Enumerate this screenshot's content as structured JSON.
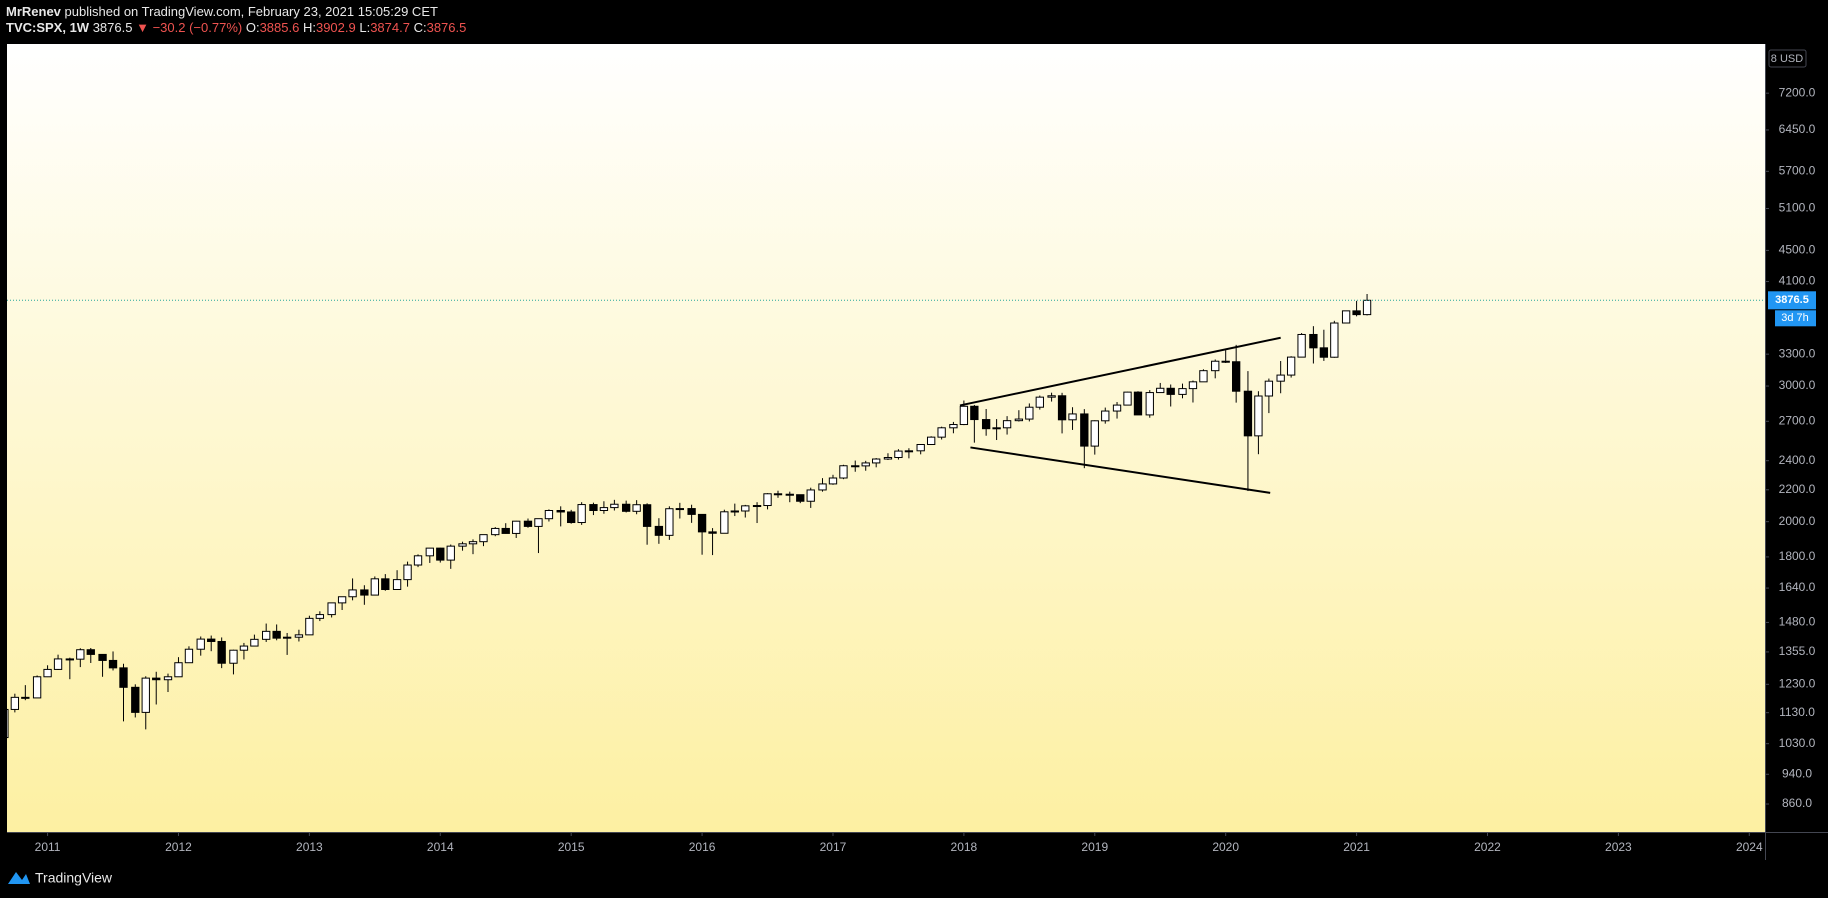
{
  "header": {
    "author": "MrRenev",
    "published": "published on TradingView.com, February 23, 2021 15:05:29 CET",
    "symbol": "TVC:SPX, 1W",
    "arrow": "▼",
    "change": "−30.2 (−0.77%)",
    "ohlc_labels": [
      "O:",
      "H:",
      "L:",
      "C:"
    ]
  },
  "footer": {
    "brand": "TradingView"
  },
  "chart_data": {
    "type": "candlestick",
    "log_scale": true,
    "grid": false,
    "up_color": "#ffffff",
    "down_color": "#000000",
    "wick_color": "#000000",
    "price_line_color": "#26a69a",
    "tag_color": "#2196f3",
    "currency": "8 USD",
    "countdown": "3d 7h",
    "ohlc": {
      "open": 3885.6,
      "high": 3902.9,
      "low": 3874.7,
      "close": 3876.5
    },
    "xlim": [
      2010.69,
      2024.12
    ],
    "xticks": [
      2011,
      2012,
      2013,
      2014,
      2015,
      2016,
      2017,
      2018,
      2019,
      2020,
      2021,
      2022,
      2023,
      2024
    ],
    "ylim": [
      791,
      8340
    ],
    "yticks": [
      {
        "value": 860,
        "label": "860.0"
      },
      {
        "value": 940,
        "label": "940.0"
      },
      {
        "value": 1030,
        "label": "1030.0"
      },
      {
        "value": 1130,
        "label": "1130.0"
      },
      {
        "value": 1230,
        "label": "1230.0"
      },
      {
        "value": 1355,
        "label": "1355.0"
      },
      {
        "value": 1480,
        "label": "1480.0"
      },
      {
        "value": 1640,
        "label": "1640.0"
      },
      {
        "value": 1800,
        "label": "1800.0"
      },
      {
        "value": 2000,
        "label": "2000.0"
      },
      {
        "value": 2200,
        "label": "2200.0"
      },
      {
        "value": 2400,
        "label": "2400.0"
      },
      {
        "value": 2700,
        "label": "2700.0"
      },
      {
        "value": 3000,
        "label": "3000.0"
      },
      {
        "value": 3300,
        "label": "3300.0"
      },
      {
        "value": 4100,
        "label": "4100.0"
      },
      {
        "value": 4500,
        "label": "4500.0"
      },
      {
        "value": 5100,
        "label": "5100.0"
      },
      {
        "value": 5700,
        "label": "5700.0"
      },
      {
        "value": 6450,
        "label": "6450.0"
      },
      {
        "value": 7200,
        "label": "7200.0"
      }
    ],
    "x": [
      2010.67,
      2010.75,
      2010.83,
      2010.92,
      2011,
      2011.08,
      2011.17,
      2011.25,
      2011.33,
      2011.42,
      2011.5,
      2011.58,
      2011.67,
      2011.75,
      2011.83,
      2011.92,
      2012,
      2012.08,
      2012.17,
      2012.25,
      2012.33,
      2012.42,
      2012.5,
      2012.58,
      2012.67,
      2012.75,
      2012.83,
      2012.92,
      2013,
      2013.08,
      2013.17,
      2013.25,
      2013.33,
      2013.42,
      2013.5,
      2013.58,
      2013.67,
      2013.75,
      2013.83,
      2013.92,
      2014,
      2014.08,
      2014.17,
      2014.25,
      2014.33,
      2014.42,
      2014.5,
      2014.58,
      2014.67,
      2014.75,
      2014.83,
      2014.92,
      2015,
      2015.08,
      2015.17,
      2015.25,
      2015.33,
      2015.42,
      2015.5,
      2015.58,
      2015.67,
      2015.75,
      2015.83,
      2015.92,
      2016,
      2016.08,
      2016.17,
      2016.25,
      2016.33,
      2016.42,
      2016.5,
      2016.58,
      2016.67,
      2016.75,
      2016.83,
      2016.92,
      2017,
      2017.08,
      2017.17,
      2017.25,
      2017.33,
      2017.42,
      2017.5,
      2017.58,
      2017.67,
      2017.75,
      2017.83,
      2017.92,
      2018,
      2018.08,
      2018.17,
      2018.25,
      2018.33,
      2018.42,
      2018.5,
      2018.58,
      2018.67,
      2018.75,
      2018.83,
      2018.92,
      2019,
      2019.08,
      2019.17,
      2019.25,
      2019.33,
      2019.42,
      2019.5,
      2019.58,
      2019.67,
      2019.75,
      2019.83,
      2019.92,
      2020,
      2020.08,
      2020.17,
      2020.25,
      2020.33,
      2020.42,
      2020.5,
      2020.58,
      2020.67,
      2020.75,
      2020.83,
      2020.92,
      2021,
      2021.08
    ],
    "open": [
      1049,
      1141,
      1183,
      1181,
      1258,
      1286,
      1327,
      1326,
      1364,
      1345,
      1321,
      1292,
      1219,
      1131,
      1253,
      1247,
      1258,
      1312,
      1366,
      1408,
      1398,
      1310,
      1362,
      1379,
      1407,
      1441,
      1412,
      1416,
      1426,
      1498,
      1515,
      1569,
      1598,
      1631,
      1606,
      1686,
      1633,
      1682,
      1757,
      1806,
      1848,
      1783,
      1859,
      1872,
      1884,
      1924,
      1960,
      1931,
      2003,
      1972,
      2018,
      2068,
      2059,
      1995,
      2105,
      2068,
      2086,
      2107,
      2063,
      2104,
      1972,
      1920,
      2079,
      2080,
      2044,
      1940,
      1932,
      2060,
      2065,
      2097,
      2099,
      2174,
      2171,
      2168,
      2126,
      2199,
      2239,
      2279,
      2364,
      2363,
      2384,
      2412,
      2423,
      2470,
      2472,
      2519,
      2575,
      2648,
      2674,
      2824,
      2714,
      2641,
      2648,
      2705,
      2718,
      2816,
      2902,
      2914,
      2712,
      2760,
      2507,
      2704,
      2784,
      2834,
      2946,
      2752,
      2942,
      2980,
      2926,
      2977,
      3038,
      3141,
      3231,
      3226,
      2954,
      2585,
      2912,
      3044,
      3100,
      3271,
      3500,
      3363,
      3270,
      3622,
      3756,
      3714
    ],
    "high": [
      1149,
      1196,
      1227,
      1263,
      1302,
      1344,
      1332,
      1370,
      1371,
      1346,
      1357,
      1308,
      1230,
      1260,
      1277,
      1270,
      1334,
      1378,
      1419,
      1423,
      1415,
      1364,
      1392,
      1427,
      1475,
      1471,
      1434,
      1448,
      1510,
      1530,
      1570,
      1598,
      1688,
      1654,
      1698,
      1710,
      1730,
      1775,
      1814,
      1849,
      1850,
      1868,
      1884,
      1897,
      1924,
      1968,
      1991,
      2005,
      2019,
      2019,
      2075,
      2094,
      2072,
      2120,
      2117,
      2126,
      2135,
      2130,
      2133,
      2113,
      2021,
      2094,
      2116,
      2104,
      2045,
      1962,
      2073,
      2111,
      2103,
      2120,
      2178,
      2194,
      2188,
      2169,
      2214,
      2278,
      2301,
      2371,
      2401,
      2399,
      2419,
      2454,
      2484,
      2491,
      2520,
      2582,
      2657,
      2695,
      2873,
      2835,
      2801,
      2718,
      2742,
      2791,
      2848,
      2916,
      2941,
      2940,
      2816,
      2800,
      2708,
      2813,
      2860,
      2949,
      2954,
      2964,
      3028,
      3014,
      3022,
      3050,
      3154,
      3248,
      3338,
      3393,
      3137,
      2954,
      3068,
      3233,
      3280,
      3515,
      3588,
      3550,
      3646,
      3760,
      3870,
      3950
    ],
    "low": [
      1040,
      1131,
      1173,
      1181,
      1257,
      1284,
      1249,
      1295,
      1311,
      1258,
      1282,
      1101,
      1114,
      1075,
      1158,
      1202,
      1258,
      1312,
      1340,
      1358,
      1291,
      1267,
      1325,
      1378,
      1396,
      1403,
      1343,
      1398,
      1426,
      1486,
      1502,
      1536,
      1581,
      1560,
      1604,
      1627,
      1633,
      1647,
      1746,
      1768,
      1770,
      1737,
      1834,
      1815,
      1859,
      1915,
      1930,
      1905,
      1964,
      1821,
      2001,
      1972,
      1988,
      1981,
      2040,
      2048,
      2068,
      2056,
      2045,
      1867,
      1872,
      1894,
      2019,
      1993,
      1812,
      1810,
      1932,
      2034,
      2025,
      1992,
      2075,
      2148,
      2120,
      2114,
      2084,
      2188,
      2233,
      2271,
      2322,
      2329,
      2353,
      2405,
      2408,
      2417,
      2446,
      2515,
      2557,
      2605,
      2669,
      2533,
      2586,
      2553,
      2595,
      2698,
      2699,
      2796,
      2864,
      2604,
      2631,
      2347,
      2444,
      2681,
      2722,
      2831,
      2751,
      2729,
      2940,
      2822,
      2892,
      2856,
      3037,
      3070,
      3214,
      2855,
      2192,
      2447,
      2767,
      2936,
      3077,
      3268,
      3209,
      3234,
      3265,
      3618,
      3695,
      3705
    ],
    "close": [
      1141,
      1183,
      1181,
      1258,
      1286,
      1327,
      1326,
      1364,
      1345,
      1321,
      1292,
      1219,
      1131,
      1253,
      1247,
      1258,
      1312,
      1366,
      1408,
      1398,
      1310,
      1362,
      1379,
      1407,
      1441,
      1412,
      1416,
      1426,
      1498,
      1515,
      1569,
      1598,
      1631,
      1606,
      1686,
      1633,
      1682,
      1757,
      1806,
      1848,
      1783,
      1859,
      1872,
      1884,
      1924,
      1960,
      1931,
      2003,
      1972,
      2018,
      2068,
      2059,
      1995,
      2105,
      2068,
      2086,
      2107,
      2063,
      2104,
      1972,
      1920,
      2079,
      2080,
      2044,
      1940,
      1932,
      2060,
      2065,
      2097,
      2099,
      2174,
      2171,
      2168,
      2126,
      2199,
      2239,
      2279,
      2364,
      2363,
      2384,
      2412,
      2423,
      2470,
      2472,
      2519,
      2575,
      2648,
      2674,
      2824,
      2714,
      2641,
      2648,
      2705,
      2718,
      2816,
      2902,
      2914,
      2712,
      2760,
      2507,
      2704,
      2784,
      2834,
      2946,
      2752,
      2942,
      2980,
      2926,
      2977,
      3038,
      3141,
      3231,
      3226,
      2954,
      2585,
      2912,
      3044,
      3100,
      3271,
      3500,
      3363,
      3270,
      3622,
      3756,
      3714,
      3876.5
    ],
    "drawings": [
      {
        "x": [
          2017.97,
          2020.42
        ],
        "y": [
          2831,
          3466
        ]
      },
      {
        "x": [
          2018.05,
          2020.34
        ],
        "y": [
          2497,
          2180
        ]
      }
    ]
  }
}
